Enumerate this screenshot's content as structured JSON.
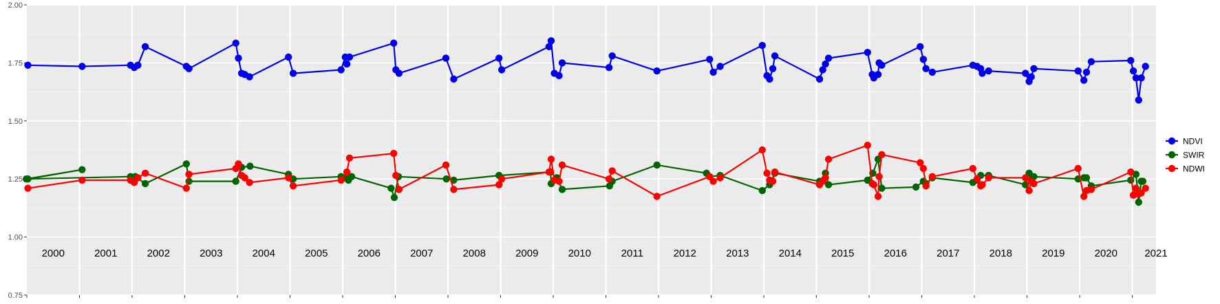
{
  "chart_data": {
    "type": "line",
    "title": "",
    "xlabel": "",
    "ylabel": "",
    "ylim": [
      0.75,
      2.0
    ],
    "xlim": [
      2000.0,
      2021.45
    ],
    "y_ticks": [
      0.75,
      1.0,
      1.25,
      1.5,
      1.75,
      2.0
    ],
    "y_tick_labels": [
      "0.75",
      "1.00",
      "1.25",
      "1.50",
      "1.75",
      "2.00"
    ],
    "year_labels": [
      "2000",
      "2001",
      "2002",
      "2003",
      "2004",
      "2005",
      "2006",
      "2007",
      "2008",
      "2009",
      "2010",
      "2011",
      "2012",
      "2013",
      "2014",
      "2015",
      "2016",
      "2017",
      "2018",
      "2019",
      "2020",
      "2021"
    ],
    "grid": true,
    "legend_position": "right",
    "series": [
      {
        "name": "NDVI",
        "color": "#0000ee",
        "points": [
          [
            2000.02,
            1.74
          ],
          [
            2001.05,
            1.735
          ],
          [
            2001.97,
            1.74
          ],
          [
            2002.04,
            1.73
          ],
          [
            2002.11,
            1.74
          ],
          [
            2002.25,
            1.82
          ],
          [
            2003.03,
            1.735
          ],
          [
            2003.08,
            1.725
          ],
          [
            2003.97,
            1.835
          ],
          [
            2004.02,
            1.77
          ],
          [
            2004.08,
            1.705
          ],
          [
            2004.14,
            1.7
          ],
          [
            2004.23,
            1.69
          ],
          [
            2004.97,
            1.775
          ],
          [
            2005.06,
            1.705
          ],
          [
            2005.97,
            1.72
          ],
          [
            2006.05,
            1.775
          ],
          [
            2006.08,
            1.745
          ],
          [
            2006.13,
            1.775
          ],
          [
            2006.97,
            1.835
          ],
          [
            2007.01,
            1.72
          ],
          [
            2007.07,
            1.705
          ],
          [
            2007.96,
            1.77
          ],
          [
            2008.11,
            1.68
          ],
          [
            2008.97,
            1.77
          ],
          [
            2009.02,
            1.72
          ],
          [
            2009.92,
            1.82
          ],
          [
            2009.96,
            1.845
          ],
          [
            2010.02,
            1.705
          ],
          [
            2010.11,
            1.695
          ],
          [
            2010.17,
            1.75
          ],
          [
            2011.06,
            1.73
          ],
          [
            2011.12,
            1.78
          ],
          [
            2011.97,
            1.715
          ],
          [
            2012.97,
            1.765
          ],
          [
            2013.04,
            1.71
          ],
          [
            2013.17,
            1.735
          ],
          [
            2013.97,
            1.825
          ],
          [
            2014.06,
            1.695
          ],
          [
            2014.11,
            1.68
          ],
          [
            2014.17,
            1.725
          ],
          [
            2014.21,
            1.78
          ],
          [
            2015.06,
            1.68
          ],
          [
            2015.12,
            1.72
          ],
          [
            2015.17,
            1.745
          ],
          [
            2015.23,
            1.77
          ],
          [
            2015.97,
            1.795
          ],
          [
            2016.06,
            1.7
          ],
          [
            2016.09,
            1.685
          ],
          [
            2016.17,
            1.7
          ],
          [
            2016.19,
            1.75
          ],
          [
            2016.24,
            1.74
          ],
          [
            2016.97,
            1.82
          ],
          [
            2017.03,
            1.765
          ],
          [
            2017.08,
            1.725
          ],
          [
            2017.2,
            1.71
          ],
          [
            2017.97,
            1.74
          ],
          [
            2018.05,
            1.735
          ],
          [
            2018.12,
            1.725
          ],
          [
            2018.15,
            1.705
          ],
          [
            2018.27,
            1.715
          ],
          [
            2018.97,
            1.705
          ],
          [
            2019.04,
            1.67
          ],
          [
            2019.08,
            1.69
          ],
          [
            2019.13,
            1.725
          ],
          [
            2019.97,
            1.715
          ],
          [
            2020.08,
            1.675
          ],
          [
            2020.13,
            1.71
          ],
          [
            2020.22,
            1.755
          ],
          [
            2020.97,
            1.76
          ],
          [
            2021.02,
            1.715
          ],
          [
            2021.07,
            1.685
          ],
          [
            2021.12,
            1.59
          ],
          [
            2021.17,
            1.685
          ],
          [
            2021.25,
            1.735
          ]
        ]
      },
      {
        "name": "SWIR",
        "color": "#006400",
        "points": [
          [
            2000.02,
            1.25
          ],
          [
            2001.05,
            1.29
          ],
          [
            1999.99,
            1.25
          ],
          [
            2001.97,
            1.26
          ],
          [
            2002.06,
            1.26
          ],
          [
            2002.25,
            1.23
          ],
          [
            2003.03,
            1.315
          ],
          [
            2003.08,
            1.24
          ],
          [
            2003.97,
            1.24
          ],
          [
            2004.08,
            1.3
          ],
          [
            2004.24,
            1.305
          ],
          [
            2004.97,
            1.27
          ],
          [
            2005.06,
            1.25
          ],
          [
            2005.97,
            1.26
          ],
          [
            2006.05,
            1.255
          ],
          [
            2006.11,
            1.245
          ],
          [
            2006.17,
            1.26
          ],
          [
            2006.92,
            1.21
          ],
          [
            2006.98,
            1.17
          ],
          [
            2007.06,
            1.26
          ],
          [
            2007.97,
            1.25
          ],
          [
            2008.11,
            1.245
          ],
          [
            2008.97,
            1.265
          ],
          [
            2009.95,
            1.28
          ],
          [
            2009.96,
            1.23
          ],
          [
            2010.07,
            1.255
          ],
          [
            2010.17,
            1.205
          ],
          [
            2011.07,
            1.22
          ],
          [
            2011.12,
            1.24
          ],
          [
            2011.97,
            1.31
          ],
          [
            2012.91,
            1.275
          ],
          [
            2012.97,
            1.26
          ],
          [
            2013.17,
            1.265
          ],
          [
            2013.97,
            1.2
          ],
          [
            2014.11,
            1.225
          ],
          [
            2014.21,
            1.275
          ],
          [
            2015.06,
            1.24
          ],
          [
            2015.17,
            1.275
          ],
          [
            2015.23,
            1.225
          ],
          [
            2015.97,
            1.245
          ],
          [
            2016.07,
            1.275
          ],
          [
            2016.17,
            1.335
          ],
          [
            2016.24,
            1.21
          ],
          [
            2016.89,
            1.215
          ],
          [
            2017.03,
            1.24
          ],
          [
            2017.08,
            1.23
          ],
          [
            2017.2,
            1.255
          ],
          [
            2017.97,
            1.235
          ],
          [
            2018.05,
            1.245
          ],
          [
            2018.12,
            1.265
          ],
          [
            2018.27,
            1.265
          ],
          [
            2018.97,
            1.225
          ],
          [
            2019.04,
            1.275
          ],
          [
            2019.08,
            1.245
          ],
          [
            2019.13,
            1.26
          ],
          [
            2019.97,
            1.25
          ],
          [
            2020.08,
            1.255
          ],
          [
            2020.13,
            1.255
          ],
          [
            2020.22,
            1.22
          ],
          [
            2020.97,
            1.245
          ],
          [
            2021.07,
            1.27
          ],
          [
            2021.12,
            1.15
          ],
          [
            2021.17,
            1.24
          ],
          [
            2021.2,
            1.24
          ]
        ]
      },
      {
        "name": "NDWI",
        "color": "#ff0000",
        "points": [
          [
            2000.02,
            1.21
          ],
          [
            2001.05,
            1.245
          ],
          [
            2001.97,
            1.245
          ],
          [
            2002.04,
            1.235
          ],
          [
            2002.11,
            1.255
          ],
          [
            2002.25,
            1.275
          ],
          [
            2003.03,
            1.21
          ],
          [
            2003.08,
            1.27
          ],
          [
            2003.97,
            1.295
          ],
          [
            2004.02,
            1.315
          ],
          [
            2004.08,
            1.265
          ],
          [
            2004.14,
            1.255
          ],
          [
            2004.23,
            1.235
          ],
          [
            2004.97,
            1.255
          ],
          [
            2005.06,
            1.22
          ],
          [
            2005.97,
            1.245
          ],
          [
            2006.08,
            1.28
          ],
          [
            2006.13,
            1.34
          ],
          [
            2006.97,
            1.36
          ],
          [
            2007.01,
            1.265
          ],
          [
            2007.07,
            1.205
          ],
          [
            2007.96,
            1.31
          ],
          [
            2008.11,
            1.205
          ],
          [
            2008.97,
            1.225
          ],
          [
            2009.02,
            1.25
          ],
          [
            2009.92,
            1.28
          ],
          [
            2009.96,
            1.335
          ],
          [
            2010.02,
            1.245
          ],
          [
            2010.11,
            1.24
          ],
          [
            2010.17,
            1.31
          ],
          [
            2011.06,
            1.25
          ],
          [
            2011.12,
            1.285
          ],
          [
            2011.97,
            1.175
          ],
          [
            2012.97,
            1.26
          ],
          [
            2013.04,
            1.24
          ],
          [
            2013.17,
            1.255
          ],
          [
            2013.97,
            1.375
          ],
          [
            2014.06,
            1.275
          ],
          [
            2014.11,
            1.245
          ],
          [
            2014.17,
            1.24
          ],
          [
            2014.21,
            1.28
          ],
          [
            2015.06,
            1.225
          ],
          [
            2015.12,
            1.24
          ],
          [
            2015.17,
            1.255
          ],
          [
            2015.23,
            1.335
          ],
          [
            2015.97,
            1.395
          ],
          [
            2016.06,
            1.23
          ],
          [
            2016.09,
            1.225
          ],
          [
            2016.17,
            1.175
          ],
          [
            2016.19,
            1.26
          ],
          [
            2016.24,
            1.355
          ],
          [
            2016.97,
            1.32
          ],
          [
            2017.03,
            1.295
          ],
          [
            2017.08,
            1.22
          ],
          [
            2017.2,
            1.26
          ],
          [
            2017.97,
            1.295
          ],
          [
            2018.05,
            1.25
          ],
          [
            2018.12,
            1.22
          ],
          [
            2018.15,
            1.225
          ],
          [
            2018.27,
            1.255
          ],
          [
            2018.97,
            1.255
          ],
          [
            2019.04,
            1.2
          ],
          [
            2019.08,
            1.24
          ],
          [
            2019.13,
            1.23
          ],
          [
            2019.97,
            1.295
          ],
          [
            2020.08,
            1.175
          ],
          [
            2020.13,
            1.2
          ],
          [
            2020.22,
            1.205
          ],
          [
            2020.97,
            1.28
          ],
          [
            2021.02,
            1.18
          ],
          [
            2021.07,
            1.21
          ],
          [
            2021.12,
            1.185
          ],
          [
            2021.17,
            1.19
          ],
          [
            2021.25,
            1.21
          ]
        ]
      }
    ]
  }
}
